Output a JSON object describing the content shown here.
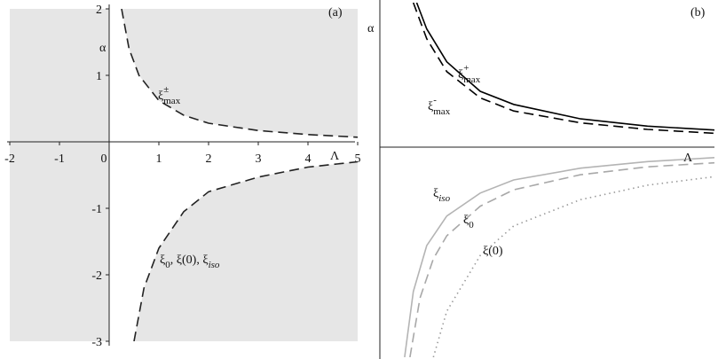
{
  "chart_data": [
    {
      "type": "line",
      "title": "(a)",
      "xlabel": "Λ",
      "ylabel": "α",
      "xlim": [
        -2,
        5
      ],
      "ylim": [
        -3,
        2
      ],
      "xticks": [
        -2,
        -1,
        0,
        1,
        2,
        3,
        4,
        5
      ],
      "yticks": [
        -3,
        -2,
        -1,
        1,
        2
      ],
      "shaded": true,
      "shade_color": "#e6e6e6",
      "series": [
        {
          "color": "#222222",
          "dash": "dashed",
          "x": [
            0.25,
            0.4,
            0.6,
            1,
            1.5,
            2,
            3,
            4,
            5
          ],
          "values": [
            2,
            1.4,
            1.0,
            0.62,
            0.4,
            0.28,
            0.17,
            0.11,
            0.07
          ]
        },
        {
          "color": "#222222",
          "dash": "dashed",
          "x": [
            0.5,
            0.7,
            1,
            1.5,
            2,
            3,
            4,
            5
          ],
          "values": [
            -3,
            -2.2,
            -1.6,
            -1.05,
            -0.75,
            -0.53,
            -0.38,
            -0.3
          ]
        }
      ],
      "annotations": [
        {
          "parts": [
            {
              "text": "ξ"
            },
            {
              "sub": "max"
            },
            {
              "sup": "±"
            }
          ]
        },
        {
          "parts": [
            {
              "text": "ξ"
            },
            {
              "sub": "0"
            },
            {
              "text": ", ξ(0), ξ"
            },
            {
              "sub": "iso"
            }
          ]
        }
      ]
    },
    {
      "type": "line",
      "title": "(b)",
      "xlabel": "Λ",
      "ylabel": "α",
      "xlim": [
        0,
        5
      ],
      "ylim": [
        -3.2,
        2.2
      ],
      "shaded": false,
      "series": [
        {
          "color": "#000000",
          "dash": "solid",
          "x": [
            0.55,
            0.7,
            1,
            1.5,
            2,
            3,
            4,
            5
          ],
          "values": [
            2.2,
            1.8,
            1.3,
            0.85,
            0.65,
            0.43,
            0.32,
            0.26
          ]
        },
        {
          "color": "#000000",
          "dash": "dashed",
          "x": [
            0.5,
            0.7,
            1,
            1.5,
            2,
            3,
            4,
            5
          ],
          "values": [
            2.2,
            1.65,
            1.15,
            0.75,
            0.55,
            0.37,
            0.27,
            0.21
          ]
        },
        {
          "color": "#b4b4b4",
          "dash": "solid",
          "x": [
            0.37,
            0.5,
            0.7,
            1,
            1.5,
            2,
            3,
            4,
            5
          ],
          "values": [
            -3.2,
            -2.2,
            -1.5,
            -1.05,
            -0.7,
            -0.5,
            -0.32,
            -0.22,
            -0.16
          ]
        },
        {
          "color": "#a8a8a8",
          "dash": "dashed",
          "x": [
            0.45,
            0.6,
            0.8,
            1,
            1.5,
            2,
            3,
            4,
            5
          ],
          "values": [
            -3.2,
            -2.3,
            -1.7,
            -1.35,
            -0.9,
            -0.65,
            -0.42,
            -0.3,
            -0.24
          ]
        },
        {
          "color": "#9a9a9a",
          "dash": "dotted",
          "x": [
            0.8,
            1,
            1.5,
            2,
            3,
            4,
            5
          ],
          "values": [
            -3.2,
            -2.5,
            -1.65,
            -1.2,
            -0.8,
            -0.58,
            -0.45
          ]
        }
      ],
      "annotations": [
        {
          "parts": [
            {
              "text": "ξ"
            },
            {
              "sub": "max"
            },
            {
              "sup": "+"
            }
          ]
        },
        {
          "parts": [
            {
              "text": "ξ"
            },
            {
              "sub": "max"
            },
            {
              "sup": "-"
            }
          ]
        },
        {
          "parts": [
            {
              "text": "ξ"
            },
            {
              "sub": "iso"
            }
          ]
        },
        {
          "parts": [
            {
              "text": "ξ"
            },
            {
              "sub": "0"
            }
          ]
        },
        {
          "parts": [
            {
              "text": "ξ(0)"
            }
          ]
        }
      ]
    }
  ]
}
